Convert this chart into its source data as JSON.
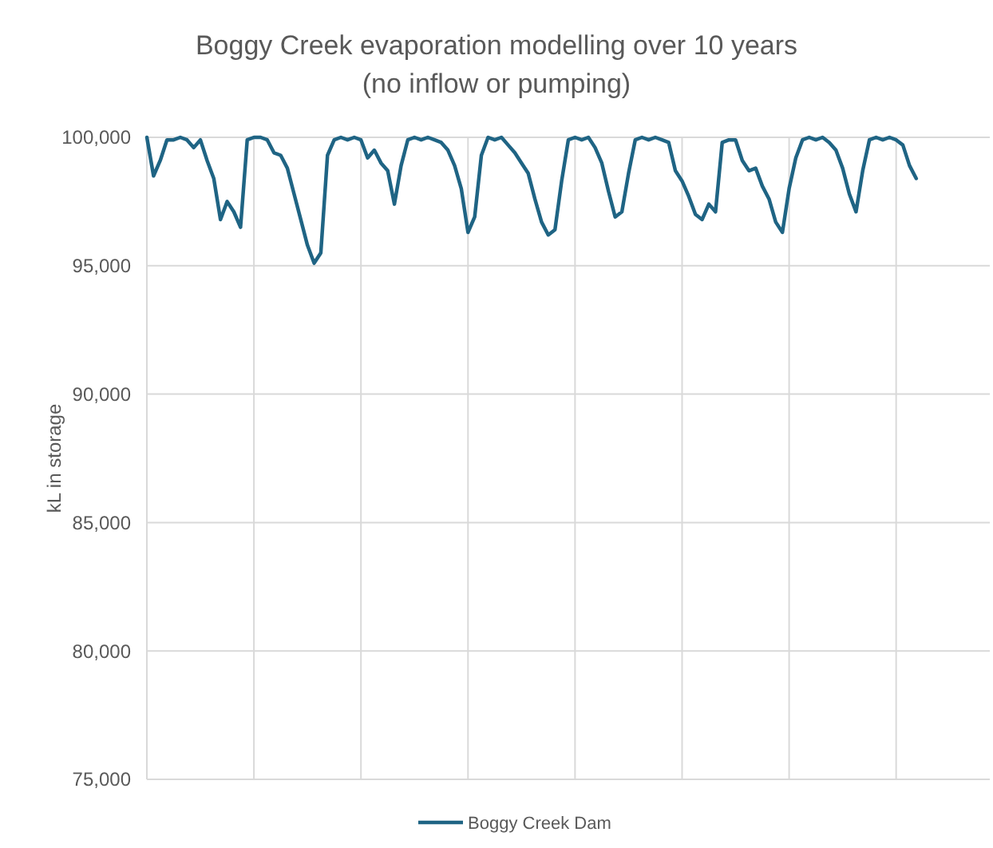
{
  "chart_data": {
    "type": "line",
    "title": "Boggy Creek evaporation modelling over 10 years",
    "subtitle": "(no inflow or pumping)",
    "ylabel": "kL in storage",
    "categories": [
      null,
      null,
      null,
      null,
      null,
      null,
      null,
      null,
      null,
      null,
      null,
      null,
      null,
      null,
      null,
      null,
      null,
      null,
      null,
      null,
      null,
      null,
      null,
      null,
      null,
      null,
      null,
      null,
      null,
      null,
      null,
      null,
      null,
      null,
      null,
      null,
      null,
      null,
      null,
      null,
      null,
      null,
      null,
      null,
      null,
      null,
      null,
      null,
      null,
      null,
      null,
      null,
      null,
      null,
      null,
      null,
      null,
      null,
      null,
      null,
      null,
      null,
      null,
      null,
      null,
      null,
      null,
      null,
      null,
      null,
      null,
      null,
      null,
      null,
      null,
      null,
      null,
      null,
      null,
      null,
      null,
      null,
      null,
      null,
      null,
      null,
      null,
      null,
      null,
      null,
      null,
      null,
      null,
      null,
      null,
      null,
      null,
      null,
      null,
      null,
      null,
      null,
      null,
      null,
      null,
      null,
      null,
      null,
      null,
      null,
      null,
      null,
      null,
      null,
      null,
      null,
      null,
      null,
      null,
      null,
      null,
      null,
      null,
      null,
      null,
      null,
      null
    ],
    "series": [
      {
        "name": "Boggy Creek Dam",
        "color": "#1f6484",
        "values": [
          100000,
          98500,
          99100,
          99900,
          99900,
          100000,
          99900,
          99600,
          99900,
          99100,
          98400,
          96800,
          97500,
          97100,
          96500,
          99900,
          100000,
          100000,
          99900,
          99400,
          99300,
          98800,
          97800,
          96800,
          95800,
          95100,
          95500,
          99300,
          99900,
          100000,
          99900,
          100000,
          99900,
          99200,
          99500,
          99000,
          98700,
          97400,
          98900,
          99900,
          100000,
          99900,
          100000,
          99900,
          99800,
          99500,
          98900,
          98000,
          96300,
          96900,
          99300,
          100000,
          99900,
          100000,
          99700,
          99400,
          99000,
          98600,
          97600,
          96700,
          96200,
          96400,
          98300,
          99900,
          100000,
          99900,
          100000,
          99600,
          99000,
          97900,
          96900,
          97100,
          98600,
          99900,
          100000,
          99900,
          100000,
          99900,
          99800,
          98700,
          98300,
          97700,
          97000,
          96800,
          97400,
          97100,
          99800,
          99900,
          99900,
          99100,
          98700,
          98800,
          98100,
          97600,
          96700,
          96300,
          98000,
          99200,
          99900,
          100000,
          99900,
          100000,
          99800,
          99500,
          98800,
          97800,
          97100,
          98700,
          99900,
          100000,
          99900,
          100000,
          99900,
          99700,
          98900,
          98400,
          null,
          null,
          null,
          null,
          null,
          null,
          null,
          null,
          null,
          null,
          null
        ]
      }
    ],
    "ylim": [
      75000,
      100000
    ],
    "yticks": [
      {
        "value": 75000,
        "label": "75,000"
      },
      {
        "value": 80000,
        "label": "80,000"
      },
      {
        "value": 85000,
        "label": "85,000"
      },
      {
        "value": 90000,
        "label": "90,000"
      },
      {
        "value": 95000,
        "label": "95,000"
      },
      {
        "value": 100000,
        "label": "100,000"
      }
    ],
    "grid": true,
    "legend": "bottom",
    "marker": "none",
    "line_style": "solid"
  }
}
